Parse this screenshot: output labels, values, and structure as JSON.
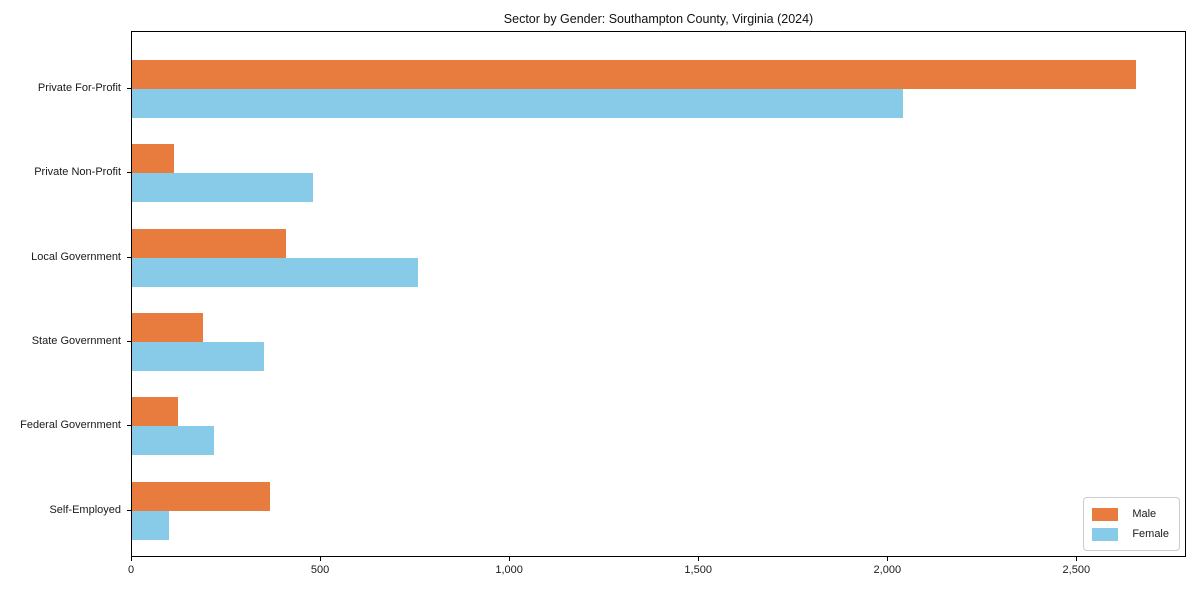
{
  "chart_data": {
    "type": "bar",
    "orientation": "horizontal",
    "title": "Sector by Gender: Southampton County, Virginia (2024)",
    "categories": [
      "Private For-Profit",
      "Private Non-Profit",
      "Local Government",
      "State Government",
      "Federal Government",
      "Self-Employed"
    ],
    "series": [
      {
        "name": "Male",
        "color": "#e87b3e",
        "values": [
          2656,
          112,
          408,
          187,
          121,
          365
        ]
      },
      {
        "name": "Female",
        "color": "#87cbe8",
        "values": [
          2040,
          478,
          755,
          348,
          216,
          99
        ]
      }
    ],
    "xlabel": "",
    "ylabel": "",
    "xlim": [
      0,
      2790
    ],
    "xticks": [
      0,
      500,
      1000,
      1500,
      2000,
      2500
    ],
    "xtick_labels": [
      "0",
      "500",
      "1,000",
      "1,500",
      "2,000",
      "2,500"
    ],
    "grid": false,
    "legend_position": "lower right"
  }
}
